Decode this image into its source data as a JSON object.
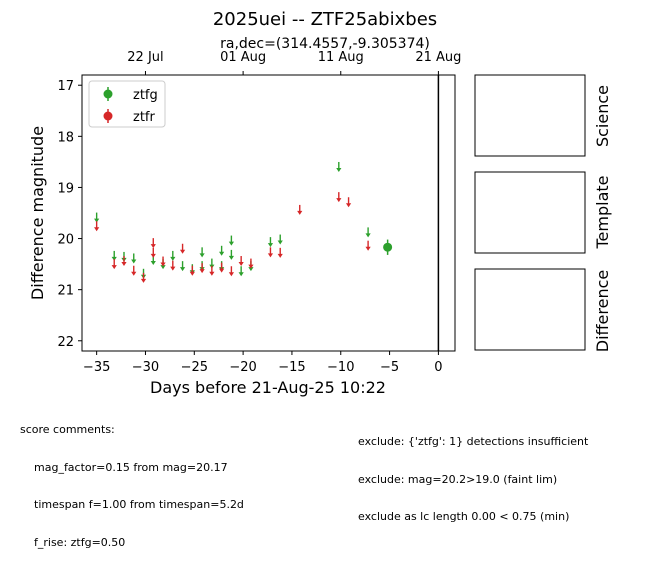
{
  "title": "2025uei -- ZTF25abixbes",
  "subtitle": "ra,dec=(314.4557,-9.305374)",
  "panel_labels": {
    "science": "Science",
    "template": "Template",
    "difference": "Difference"
  },
  "score_comments": {
    "header": "score comments:",
    "lines": [
      "mag_factor=0.15 from mag=20.17",
      "timespan f=1.00 from timespan=5.2d",
      "f_rise: ztfg=0.50"
    ]
  },
  "exclude_comments": [
    "exclude: {'ztfg': 1} detections insufficient",
    "exclude: mag=20.2>19.0 (faint lim)",
    "exclude as lc length 0.00 < 0.75 (min)"
  ],
  "chart_data": {
    "type": "scatter",
    "xlabel": "Days before 21-Aug-25 10:22",
    "ylabel": "Difference magnitude",
    "xlim": [
      -36.5,
      1.7
    ],
    "ylim": [
      22.2,
      16.8
    ],
    "y_inverted": true,
    "xticks": [
      -35,
      -30,
      -25,
      -20,
      -15,
      -10,
      -5,
      0
    ],
    "yticks": [
      17,
      18,
      19,
      20,
      21,
      22
    ],
    "top_axis_ticks": [
      {
        "x": -30,
        "label": "22 Jul"
      },
      {
        "x": -20,
        "label": "01 Aug"
      },
      {
        "x": -10,
        "label": "11 Aug"
      },
      {
        "x": 0,
        "label": "21 Aug"
      }
    ],
    "vline_x": 0,
    "legend_position": "upper left",
    "colors": {
      "ztfg": "#2ca02c",
      "ztfr": "#d62728"
    },
    "series": [
      {
        "name": "ztfg",
        "color": "#2ca02c",
        "limits": [
          [
            -35,
            19.57
          ],
          [
            -33.2,
            20.32
          ],
          [
            -32.2,
            20.34
          ],
          [
            -31.2,
            20.37
          ],
          [
            -30.2,
            20.67
          ],
          [
            -29.2,
            20.4
          ],
          [
            -28.2,
            20.48
          ],
          [
            -27.2,
            20.32
          ],
          [
            -26.2,
            20.52
          ],
          [
            -25.2,
            20.58
          ],
          [
            -24.2,
            20.25
          ],
          [
            -24.2,
            20.52
          ],
          [
            -23.2,
            20.47
          ],
          [
            -22.2,
            20.22
          ],
          [
            -22.2,
            20.52
          ],
          [
            -21.2,
            20.02
          ],
          [
            -21.2,
            20.3
          ],
          [
            -20.2,
            20.62
          ],
          [
            -19.2,
            20.52
          ],
          [
            -17.2,
            20.05
          ],
          [
            -16.2,
            20.0
          ],
          [
            -10.2,
            18.58
          ],
          [
            -7.2,
            19.86
          ]
        ],
        "detections": [
          {
            "x": -5.2,
            "y": 20.17,
            "err": 0.15
          }
        ]
      },
      {
        "name": "ztfr",
        "color": "#d62728",
        "limits": [
          [
            -35,
            19.74
          ],
          [
            -33.2,
            20.48
          ],
          [
            -32.2,
            20.42
          ],
          [
            -31.2,
            20.61
          ],
          [
            -30.2,
            20.75
          ],
          [
            -29.2,
            20.07
          ],
          [
            -29.2,
            20.26
          ],
          [
            -28.2,
            20.43
          ],
          [
            -27.2,
            20.51
          ],
          [
            -26.2,
            20.18
          ],
          [
            -25.2,
            20.61
          ],
          [
            -24.2,
            20.56
          ],
          [
            -23.2,
            20.61
          ],
          [
            -22.2,
            20.55
          ],
          [
            -21.2,
            20.62
          ],
          [
            -20.2,
            20.42
          ],
          [
            -19.2,
            20.47
          ],
          [
            -17.2,
            20.25
          ],
          [
            -16.2,
            20.26
          ],
          [
            -14.2,
            19.42
          ],
          [
            -10.2,
            19.17
          ],
          [
            -9.2,
            19.27
          ],
          [
            -7.2,
            20.12
          ]
        ]
      }
    ]
  }
}
